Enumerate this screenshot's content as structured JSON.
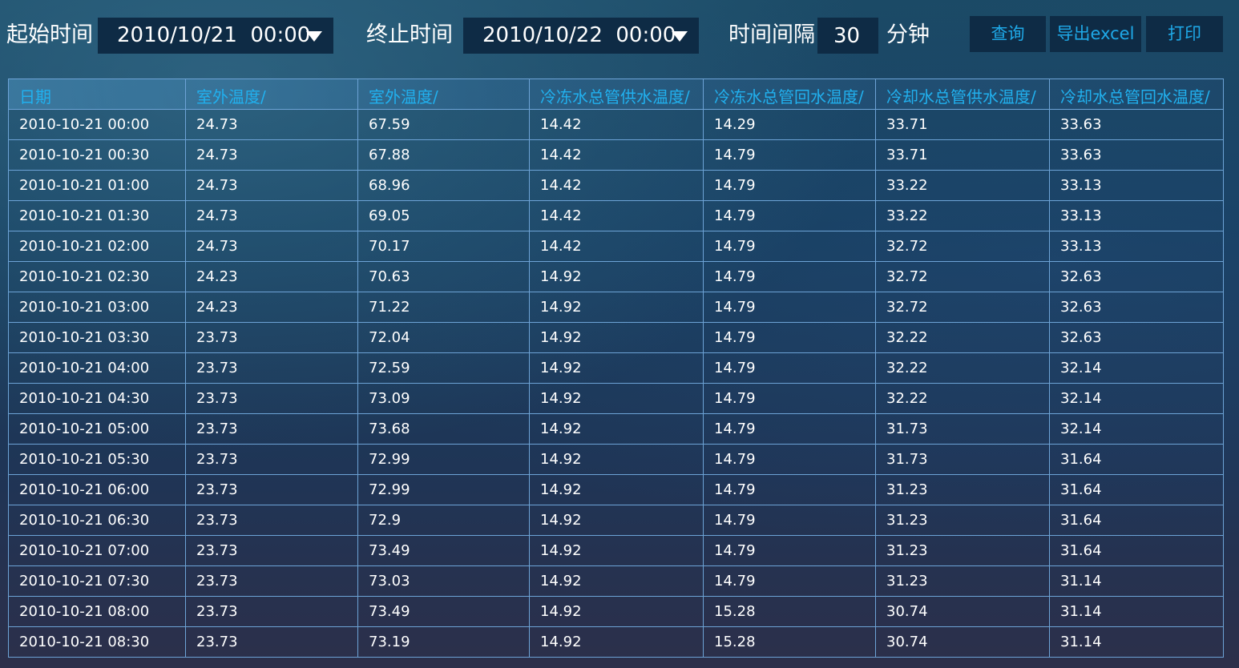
{
  "toolbar": {
    "start_label": "起始时间",
    "start_value": "2010/10/21  00:00",
    "end_label": "终止时间",
    "end_value": "2010/10/22  00:00",
    "interval_label": "时间间隔",
    "interval_value": "30",
    "interval_unit": "分钟",
    "query_label": "查询",
    "export_label": "导出excel",
    "print_label": "打印",
    "caret_icon": "chevron-down-icon",
    "accent_color": "#1fa9e8"
  },
  "table": {
    "headers": [
      "日期",
      "室外温度/",
      "室外温度/",
      "冷冻水总管供水温度/",
      "冷冻水总管回水温度/",
      "冷却水总管供水温度/",
      "冷却水总管回水温度/"
    ],
    "rows": [
      [
        "2010-10-21 00:00",
        "24.73",
        "67.59",
        "14.42",
        "14.29",
        "33.71",
        "33.63"
      ],
      [
        "2010-10-21 00:30",
        "24.73",
        "67.88",
        "14.42",
        "14.79",
        "33.71",
        "33.63"
      ],
      [
        "2010-10-21 01:00",
        "24.73",
        "68.96",
        "14.42",
        "14.79",
        "33.22",
        "33.13"
      ],
      [
        "2010-10-21 01:30",
        "24.73",
        "69.05",
        "14.42",
        "14.79",
        "33.22",
        "33.13"
      ],
      [
        "2010-10-21 02:00",
        "24.73",
        "70.17",
        "14.42",
        "14.79",
        "32.72",
        "33.13"
      ],
      [
        "2010-10-21 02:30",
        "24.23",
        "70.63",
        "14.92",
        "14.79",
        "32.72",
        "32.63"
      ],
      [
        "2010-10-21 03:00",
        "24.23",
        "71.22",
        "14.92",
        "14.79",
        "32.72",
        "32.63"
      ],
      [
        "2010-10-21 03:30",
        "23.73",
        "72.04",
        "14.92",
        "14.79",
        "32.22",
        "32.63"
      ],
      [
        "2010-10-21 04:00",
        "23.73",
        "72.59",
        "14.92",
        "14.79",
        "32.22",
        "32.14"
      ],
      [
        "2010-10-21 04:30",
        "23.73",
        "73.09",
        "14.92",
        "14.79",
        "32.22",
        "32.14"
      ],
      [
        "2010-10-21 05:00",
        "23.73",
        "73.68",
        "14.92",
        "14.79",
        "31.73",
        "32.14"
      ],
      [
        "2010-10-21 05:30",
        "23.73",
        "72.99",
        "14.92",
        "14.79",
        "31.73",
        "31.64"
      ],
      [
        "2010-10-21 06:00",
        "23.73",
        "72.99",
        "14.92",
        "14.79",
        "31.23",
        "31.64"
      ],
      [
        "2010-10-21 06:30",
        "23.73",
        "72.9",
        "14.92",
        "14.79",
        "31.23",
        "31.64"
      ],
      [
        "2010-10-21 07:00",
        "23.73",
        "73.49",
        "14.92",
        "14.79",
        "31.23",
        "31.64"
      ],
      [
        "2010-10-21 07:30",
        "23.73",
        "73.03",
        "14.92",
        "14.79",
        "31.23",
        "31.14"
      ],
      [
        "2010-10-21 08:00",
        "23.73",
        "73.49",
        "14.92",
        "15.28",
        "30.74",
        "31.14"
      ],
      [
        "2010-10-21 08:30",
        "23.73",
        "73.19",
        "14.92",
        "15.28",
        "30.74",
        "31.14"
      ]
    ]
  }
}
